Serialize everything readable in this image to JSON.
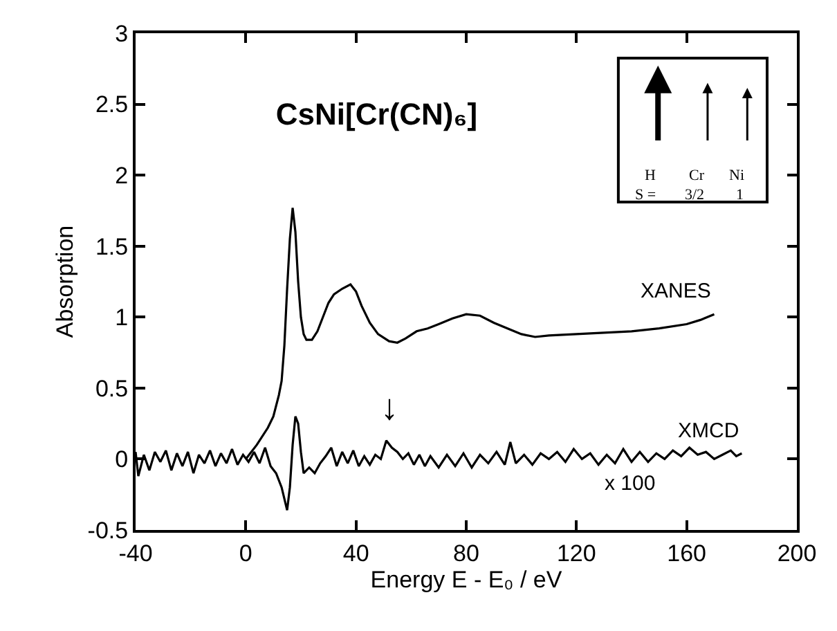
{
  "chart_data": {
    "type": "line",
    "title": "CsNi[Cr(CN)₆]",
    "xlabel": "Energy E - E₀ / eV",
    "ylabel": "Absorption",
    "xlim": [
      -40,
      200
    ],
    "xticks": [
      -40,
      0,
      40,
      80,
      120,
      160,
      200
    ],
    "ylim": [
      -0.5,
      3
    ],
    "yticks": [
      -0.5,
      0,
      0.5,
      1,
      1.5,
      2,
      2.5,
      3
    ],
    "legend": false,
    "marker": "none",
    "line_style": "solid",
    "series": [
      {
        "name": "XANES",
        "color": "#000000",
        "x": [
          0,
          4,
          8,
          10,
          12,
          13,
          14,
          15,
          16,
          17,
          18,
          19,
          20,
          21,
          22,
          24,
          26,
          28,
          30,
          32,
          35,
          38,
          40,
          42,
          45,
          48,
          52,
          55,
          58,
          62,
          66,
          70,
          75,
          80,
          85,
          90,
          95,
          100,
          105,
          110,
          120,
          130,
          140,
          150,
          160,
          165,
          170
        ],
        "values": [
          0.0,
          0.1,
          0.22,
          0.3,
          0.45,
          0.55,
          0.8,
          1.2,
          1.55,
          1.77,
          1.6,
          1.25,
          1.0,
          0.88,
          0.84,
          0.84,
          0.9,
          1.0,
          1.1,
          1.16,
          1.2,
          1.23,
          1.18,
          1.08,
          0.96,
          0.88,
          0.83,
          0.82,
          0.85,
          0.9,
          0.92,
          0.95,
          0.99,
          1.02,
          1.01,
          0.96,
          0.92,
          0.88,
          0.86,
          0.87,
          0.88,
          0.89,
          0.9,
          0.92,
          0.95,
          0.98,
          1.02
        ]
      },
      {
        "name": "XMCD",
        "color": "#000000",
        "x": [
          -40,
          -39,
          -37,
          -35,
          -33,
          -31,
          -29,
          -27,
          -25,
          -23,
          -21,
          -19,
          -17,
          -15,
          -13,
          -11,
          -9,
          -7,
          -5,
          -3,
          -1,
          1,
          3,
          5,
          7,
          9,
          11,
          13,
          15,
          16,
          17,
          18,
          19,
          20,
          21,
          23,
          25,
          27,
          29,
          31,
          33,
          35,
          37,
          39,
          41,
          43,
          45,
          47,
          49,
          51,
          53,
          55,
          57,
          59,
          61,
          63,
          65,
          67,
          70,
          73,
          76,
          79,
          82,
          85,
          88,
          91,
          94,
          96,
          98,
          101,
          104,
          107,
          110,
          113,
          116,
          119,
          122,
          125,
          128,
          131,
          134,
          137,
          140,
          143,
          146,
          149,
          152,
          155,
          158,
          161,
          164,
          167,
          170,
          173,
          176,
          178,
          180
        ],
        "values": [
          0.05,
          -0.12,
          0.03,
          -0.08,
          0.05,
          -0.02,
          0.06,
          -0.08,
          0.04,
          -0.05,
          0.05,
          -0.1,
          0.03,
          -0.03,
          0.06,
          -0.05,
          0.04,
          -0.03,
          0.07,
          -0.04,
          0.03,
          -0.02,
          0.05,
          -0.03,
          0.08,
          -0.05,
          -0.1,
          -0.2,
          -0.36,
          -0.2,
          0.1,
          0.3,
          0.25,
          0.05,
          -0.1,
          -0.06,
          -0.1,
          -0.03,
          0.02,
          0.08,
          -0.05,
          0.05,
          -0.03,
          0.06,
          -0.05,
          0.02,
          -0.04,
          0.03,
          0.0,
          0.13,
          0.08,
          0.05,
          0.0,
          0.04,
          -0.04,
          0.03,
          -0.05,
          0.02,
          -0.06,
          0.03,
          -0.05,
          0.04,
          -0.06,
          0.03,
          -0.03,
          0.05,
          -0.04,
          0.12,
          -0.03,
          0.03,
          -0.04,
          0.04,
          0.0,
          0.05,
          -0.02,
          0.07,
          0.0,
          0.04,
          -0.04,
          0.03,
          -0.03,
          0.07,
          -0.02,
          0.05,
          -0.02,
          0.04,
          0.0,
          0.06,
          0.02,
          0.08,
          0.03,
          0.05,
          0.0,
          0.03,
          0.06,
          0.02,
          0.04
        ]
      }
    ],
    "annotations": [
      "x 100",
      "↓",
      "H",
      "Cr",
      "Ni",
      "S =",
      "3/2",
      "1"
    ]
  }
}
